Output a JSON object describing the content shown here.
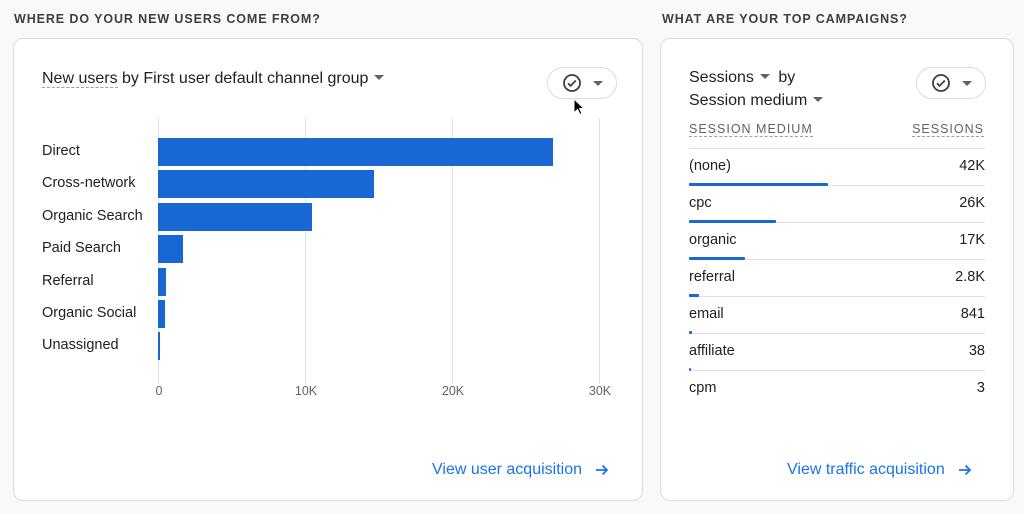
{
  "left_section": {
    "title": "WHERE DO YOUR NEW USERS COME FROM?",
    "card": {
      "metric": "New users",
      "by_text": " by First user default channel group",
      "compare_button_icon": "check-circle-icon",
      "link_label": "View user acquisition",
      "link_icon": "arrow-right-icon"
    }
  },
  "right_section": {
    "title": "WHAT ARE YOUR TOP CAMPAIGNS?",
    "card": {
      "metric": "Sessions",
      "by": "by",
      "dimension": "Session medium",
      "compare_button_icon": "check-circle-icon",
      "col_headers": [
        "SESSION MEDIUM",
        "SESSIONS"
      ],
      "rows": [
        {
          "label": "(none)",
          "value": "42K",
          "pct": 47
        },
        {
          "label": "cpc",
          "value": "26K",
          "pct": 29.5
        },
        {
          "label": "organic",
          "value": "17K",
          "pct": 19
        },
        {
          "label": "referral",
          "value": "2.8K",
          "pct": 3.4
        },
        {
          "label": "email",
          "value": "841",
          "pct": 1
        },
        {
          "label": "affiliate",
          "value": "38",
          "pct": 0.3
        },
        {
          "label": "cpm",
          "value": "3",
          "pct": 0
        }
      ],
      "link_label": "View traffic acquisition",
      "link_icon": "arrow-right-icon"
    }
  },
  "colors": {
    "bar": "#1967d2",
    "link": "#1a73e8"
  },
  "chart_data": {
    "type": "bar",
    "orientation": "horizontal",
    "title": "New users by First user default channel group",
    "categories": [
      "Direct",
      "Cross-network",
      "Organic Search",
      "Paid Search",
      "Referral",
      "Organic Social",
      "Unassigned"
    ],
    "values": [
      26900,
      14700,
      10500,
      1700,
      550,
      450,
      100
    ],
    "xlabel": "",
    "ylabel": "",
    "xlim": [
      0,
      30000
    ],
    "x_ticks": [
      "0",
      "10K",
      "20K",
      "30K"
    ],
    "grid": true,
    "legend": null
  }
}
